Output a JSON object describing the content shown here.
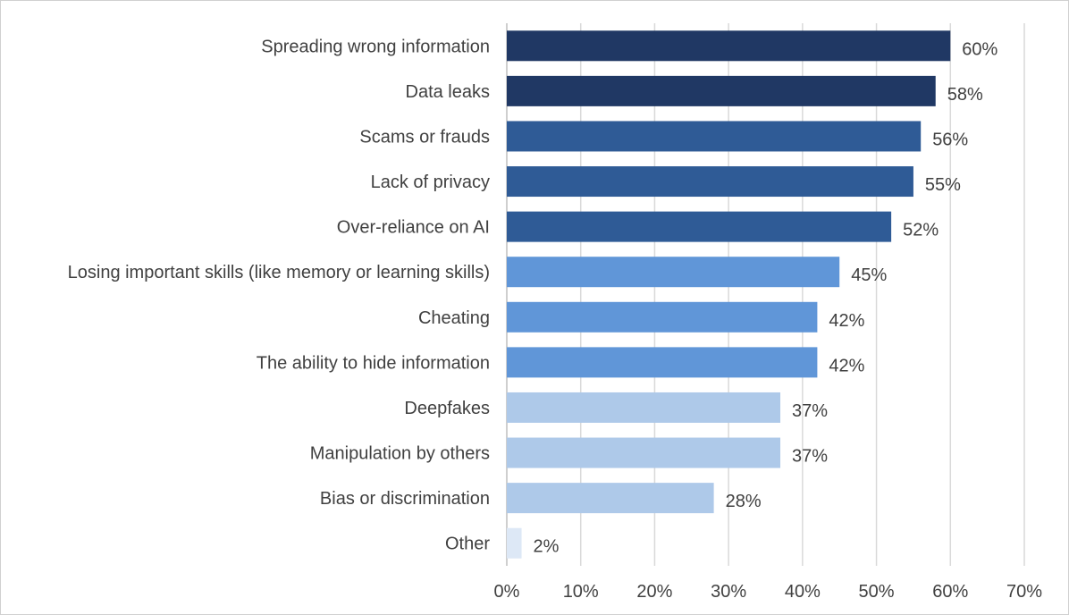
{
  "chart_data": {
    "type": "bar",
    "orientation": "horizontal",
    "title": "",
    "xlabel": "",
    "ylabel": "",
    "xlim": [
      0,
      70
    ],
    "x_ticks": [
      "0%",
      "10%",
      "20%",
      "30%",
      "40%",
      "50%",
      "60%",
      "70%"
    ],
    "grid": true,
    "legend": "none",
    "categories": [
      "Spreading wrong information",
      "Data leaks",
      "Scams or frauds",
      "Lack of privacy",
      "Over-reliance on AI",
      "Losing important skills (like memory or learning skills)",
      "Cheating",
      "The ability to hide information",
      "Deepfakes",
      "Manipulation by others",
      "Bias or discrimination",
      "Other"
    ],
    "values": [
      60,
      58,
      56,
      55,
      52,
      45,
      42,
      42,
      37,
      37,
      28,
      2
    ],
    "value_labels": [
      "60%",
      "58%",
      "56%",
      "55%",
      "52%",
      "45%",
      "42%",
      "42%",
      "37%",
      "37%",
      "28%",
      "2%"
    ],
    "bar_colors": [
      "#203864",
      "#203864",
      "#2f5b96",
      "#2f5b96",
      "#2f5b96",
      "#6096d8",
      "#6096d8",
      "#6096d8",
      "#aec9e9",
      "#aec9e9",
      "#aec9e9",
      "#dde8f6"
    ]
  }
}
